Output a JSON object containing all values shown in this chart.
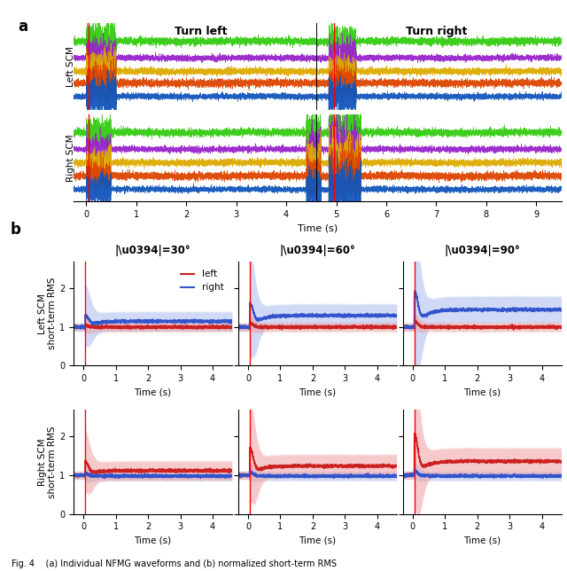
{
  "panel_a": {
    "title_left": "Turn left",
    "title_right": "Turn right",
    "left_scm_label": "Left SCM",
    "right_scm_label": "Right SCM",
    "colors": [
      "#33cc11",
      "#9922cc",
      "#ddaa00",
      "#dd4400",
      "#1155bb"
    ],
    "xlabel": "Time (s)",
    "xlim": [
      -0.25,
      9.5
    ],
    "red_lines": [
      0.05,
      4.95
    ],
    "black_line": 4.6,
    "turn_left_x": 2.3,
    "turn_right_x": 7.0
  },
  "panel_b": {
    "titles": [
      "|\\u0394|=30°",
      "|\\u0394|=60°",
      "|\\u0394|=90°"
    ],
    "left_scm_label": "Left SCM\nshort-term RMS",
    "right_scm_label": "Right SCM\nshort-term RMS",
    "xlabel": "Time (s)",
    "xlim": [
      -0.3,
      4.6
    ],
    "ylim": [
      0,
      2.7
    ],
    "red_line": 0.05,
    "color_left": "#cc2222",
    "color_right": "#3355cc",
    "fill_left": "#f0a0a0",
    "fill_right": "#aabbee",
    "legend_left": "left",
    "legend_right": "right"
  },
  "figure_bg": "#ffffff",
  "caption": "Fig. 4    (a) Individual NFMG waveforms and (b) normalized short-term RMS"
}
